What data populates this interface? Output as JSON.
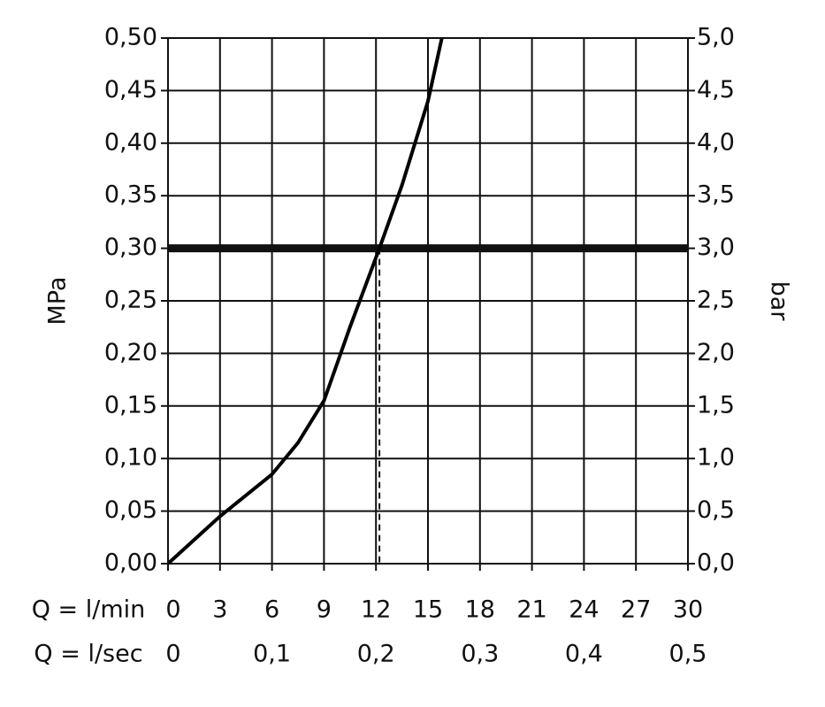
{
  "chart_data": {
    "type": "line",
    "x": [
      0,
      3,
      6,
      7.5,
      9,
      10.5,
      12.2,
      13.5,
      15,
      15.8
    ],
    "values": [
      0,
      0.045,
      0.085,
      0.115,
      0.155,
      0.225,
      0.3,
      0.36,
      0.44,
      0.5
    ],
    "color": "#000000",
    "xlim": [
      0,
      30
    ],
    "xticks": [
      0,
      3,
      6,
      9,
      12,
      15,
      18,
      21,
      24,
      27,
      30
    ],
    "xlabel": "Q = l/min",
    "x2lim": [
      0,
      0.5
    ],
    "x2ticks": [
      0,
      {
        "value": 0.1,
        "label": "0,1"
      },
      {
        "value": 0.2,
        "label": "0,2"
      },
      {
        "value": 0.3,
        "label": "0,3"
      },
      {
        "value": 0.4,
        "label": "0,4"
      },
      {
        "value": 0.5,
        "label": "0,5"
      }
    ],
    "x2label": "Q = l/sec",
    "ylim": [
      0,
      0.5
    ],
    "yticks": [
      {
        "value": 0,
        "label": "0,00"
      },
      {
        "value": 0.05,
        "label": "0,05"
      },
      {
        "value": 0.1,
        "label": "0,10"
      },
      {
        "value": 0.15,
        "label": "0,15"
      },
      {
        "value": 0.2,
        "label": "0,20"
      },
      {
        "value": 0.25,
        "label": "0,25"
      },
      {
        "value": 0.3,
        "label": "0,30"
      },
      {
        "value": 0.35,
        "label": "0,35"
      },
      {
        "value": 0.4,
        "label": "0,40"
      },
      {
        "value": 0.45,
        "label": "0,45"
      },
      {
        "value": 0.5,
        "label": "0,50"
      }
    ],
    "ylabel": "MPa",
    "y2lim": [
      0,
      5
    ],
    "y2ticks": [
      {
        "value": 0,
        "label": "0,0"
      },
      {
        "value": 0.5,
        "label": "0,5"
      },
      {
        "value": 1,
        "label": "1,0"
      },
      {
        "value": 1.5,
        "label": "1,5"
      },
      {
        "value": 2,
        "label": "2,0"
      },
      {
        "value": 2.5,
        "label": "2,5"
      },
      {
        "value": 3,
        "label": "3,0"
      },
      {
        "value": 3.5,
        "label": "3,5"
      },
      {
        "value": 4,
        "label": "4,0"
      },
      {
        "value": 4.5,
        "label": "4,5"
      },
      {
        "value": 5,
        "label": "5,0"
      }
    ],
    "y2label": "bar",
    "reference_y": 0.3,
    "reference_x": 12.2,
    "grid": true
  }
}
